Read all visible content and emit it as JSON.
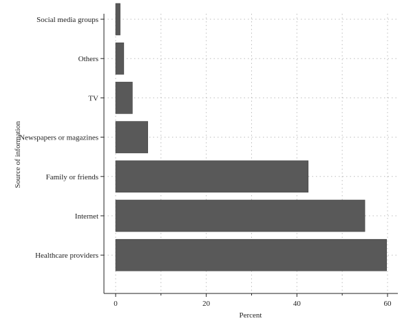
{
  "chart_data": {
    "type": "bar",
    "orientation": "horizontal",
    "title": "",
    "xlabel": "Percent",
    "ylabel": "Source of information",
    "categories": [
      "Social media groups",
      "Others",
      "TV",
      "Newspapers or magazines",
      "Family or friends",
      "Internet",
      "Healthcare providers"
    ],
    "values": [
      1.0,
      1.8,
      3.7,
      7.1,
      42.5,
      55.0,
      59.8
    ],
    "xlim": [
      0,
      60
    ],
    "x_ticks": [
      "0",
      "20",
      "40",
      "60"
    ],
    "grid": "dotted, x and y",
    "colors": {
      "bar": "#595959",
      "bar_stroke": "#444444",
      "axis": "#222222",
      "grid": "#bcbcbc"
    }
  }
}
